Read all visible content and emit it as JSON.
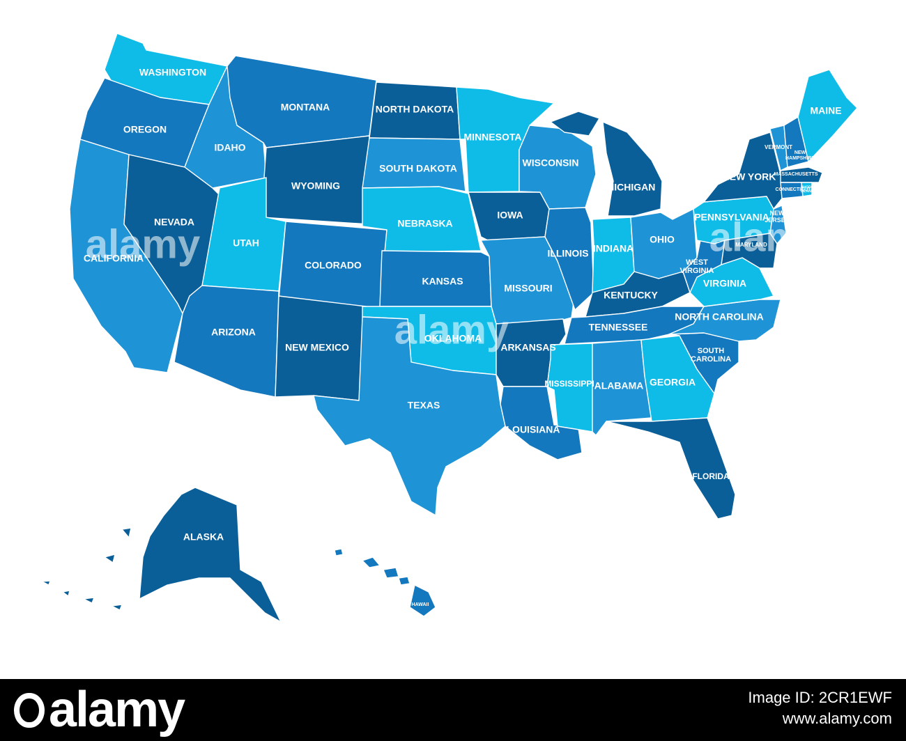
{
  "colors": {
    "darkest": "#0b5f98",
    "dark": "#1478bf",
    "mid": "#1e93d6",
    "light": "#0fbce8",
    "footer": "#000000",
    "label": "#ffffff"
  },
  "map": {
    "states": [
      {
        "name": "WASHINGTON",
        "shade": "light"
      },
      {
        "name": "OREGON",
        "shade": "dark"
      },
      {
        "name": "CALIFORNIA",
        "shade": "mid"
      },
      {
        "name": "IDAHO",
        "shade": "mid"
      },
      {
        "name": "NEVADA",
        "shade": "darkest"
      },
      {
        "name": "MONTANA",
        "shade": "dark"
      },
      {
        "name": "WYOMING",
        "shade": "darkest"
      },
      {
        "name": "UTAH",
        "shade": "light"
      },
      {
        "name": "ARIZONA",
        "shade": "dark"
      },
      {
        "name": "COLORADO",
        "shade": "dark"
      },
      {
        "name": "NEW MEXICO",
        "shade": "darkest"
      },
      {
        "name": "NORTH DAKOTA",
        "shade": "darkest"
      },
      {
        "name": "SOUTH DAKOTA",
        "shade": "mid"
      },
      {
        "name": "NEBRASKA",
        "shade": "light"
      },
      {
        "name": "KANSAS",
        "shade": "dark"
      },
      {
        "name": "OKLAHOMA",
        "shade": "light"
      },
      {
        "name": "TEXAS",
        "shade": "mid"
      },
      {
        "name": "MINNESOTA",
        "shade": "light"
      },
      {
        "name": "IOWA",
        "shade": "darkest"
      },
      {
        "name": "MISSOURI",
        "shade": "mid"
      },
      {
        "name": "ARKANSAS",
        "shade": "darkest"
      },
      {
        "name": "LOUISIANA",
        "shade": "dark"
      },
      {
        "name": "WISCONSIN",
        "shade": "mid"
      },
      {
        "name": "ILLINOIS",
        "shade": "dark"
      },
      {
        "name": "MICHIGAN",
        "shade": "darkest"
      },
      {
        "name": "INDIANA",
        "shade": "light"
      },
      {
        "name": "OHIO",
        "shade": "mid"
      },
      {
        "name": "KENTUCKY",
        "shade": "darkest"
      },
      {
        "name": "TENNESSEE",
        "shade": "dark"
      },
      {
        "name": "MISSISSIPPI",
        "shade": "light"
      },
      {
        "name": "ALABAMA",
        "shade": "mid"
      },
      {
        "name": "GEORGIA",
        "shade": "light"
      },
      {
        "name": "FLORIDA",
        "shade": "darkest"
      },
      {
        "name": "SOUTH CAROLINA",
        "shade": "dark"
      },
      {
        "name": "NORTH CAROLINA",
        "shade": "mid"
      },
      {
        "name": "VIRGINIA",
        "shade": "light"
      },
      {
        "name": "WEST VIRGINIA",
        "shade": "dark"
      },
      {
        "name": "PENNSYLVANIA",
        "shade": "light"
      },
      {
        "name": "NEW YORK",
        "shade": "darkest"
      },
      {
        "name": "NEW JERSEY",
        "shade": "mid"
      },
      {
        "name": "MARYLAND",
        "shade": "darkest"
      },
      {
        "name": "VERMONT",
        "shade": "mid"
      },
      {
        "name": "NEW HAMPSHIRE",
        "shade": "dark"
      },
      {
        "name": "MAINE",
        "shade": "light"
      },
      {
        "name": "MASSACHUSETTS",
        "shade": "darkest"
      },
      {
        "name": "CONNECTICUT",
        "shade": "dark"
      },
      {
        "name": "RHODE ISLAND",
        "shade": "light"
      },
      {
        "name": "ALASKA",
        "shade": "darkest"
      },
      {
        "name": "HAWAII",
        "shade": "dark"
      }
    ]
  },
  "watermark": {
    "text": "alamy"
  },
  "footer": {
    "logo": "alamy",
    "image_id_line": "Image ID: 2CR1EWF",
    "site": "www.alamy.com"
  }
}
